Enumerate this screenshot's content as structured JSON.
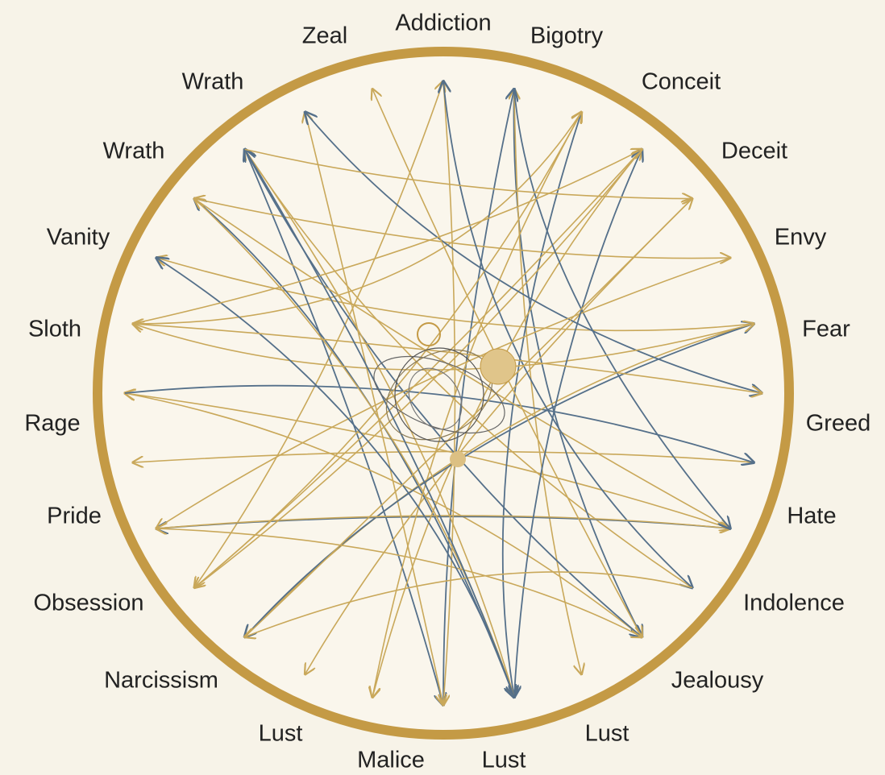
{
  "nodes": [
    {
      "label": "Addiction"
    },
    {
      "label": "Bigotry"
    },
    {
      "label": "Conceit"
    },
    {
      "label": "Deceit"
    },
    {
      "label": "Envy"
    },
    {
      "label": "Fear"
    },
    {
      "label": "Greed"
    },
    {
      "label": "Hate"
    },
    {
      "label": "Indolence"
    },
    {
      "label": "Jealousy"
    },
    {
      "label": "Lust"
    },
    {
      "label": "Lust"
    },
    {
      "label": "Malice"
    },
    {
      "label": "Lust"
    },
    {
      "label": "Narcissism"
    },
    {
      "label": "Obsession"
    },
    {
      "label": "Pride"
    },
    {
      "label": "Rage"
    },
    {
      "label": "Sloth"
    },
    {
      "label": "Vanity"
    },
    {
      "label": "Wrath"
    },
    {
      "label": "Wrath"
    },
    {
      "label": "Zeal"
    }
  ]
}
